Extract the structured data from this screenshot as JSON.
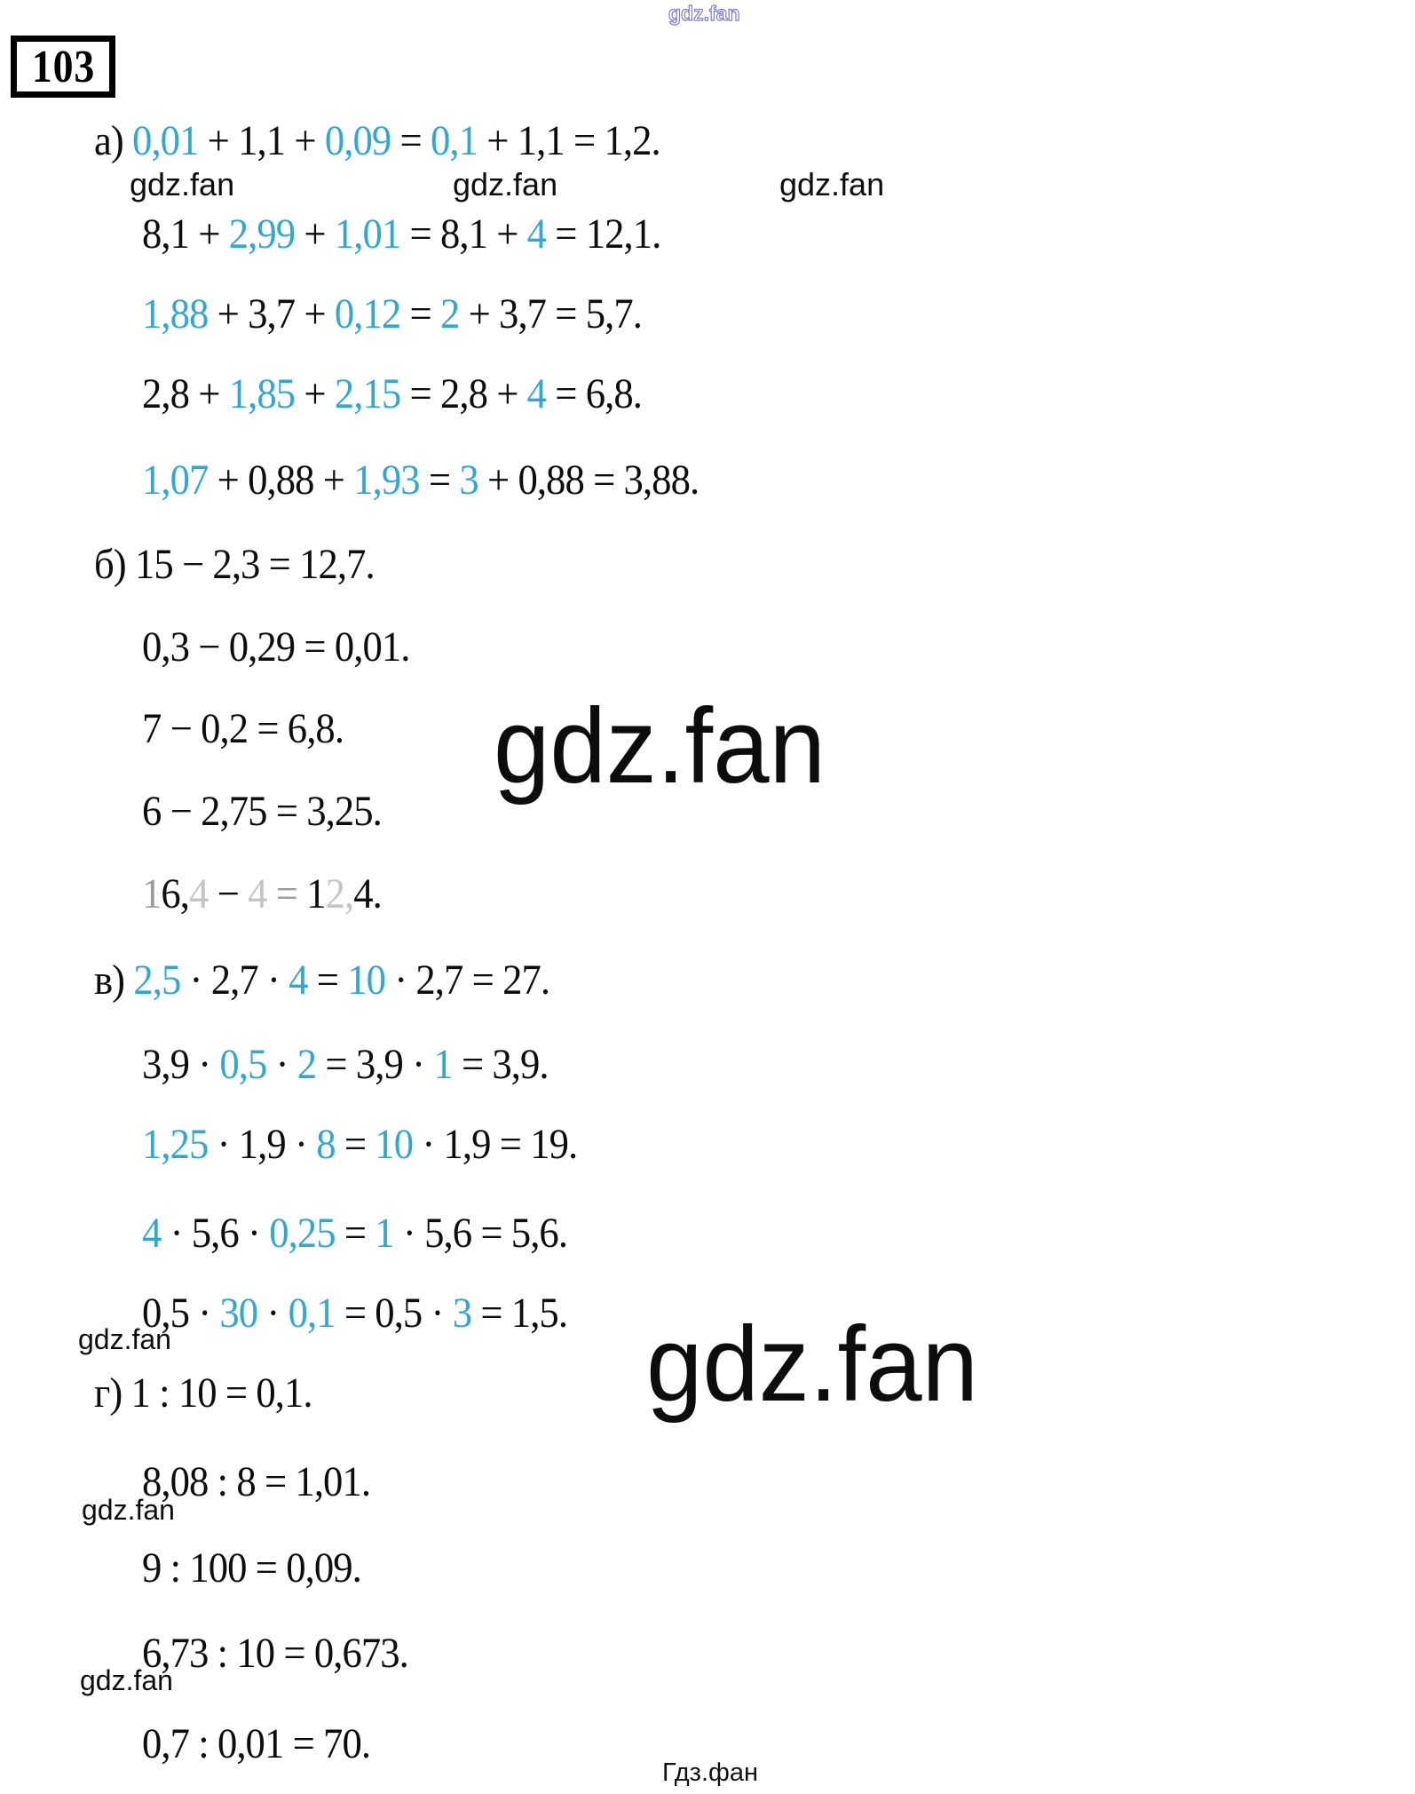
{
  "page": {
    "problem_number": "103",
    "footer": "Гдз.фан"
  },
  "colors": {
    "accent": "#2fa8d3",
    "text": "#0d0d0d",
    "faded": "#c4c4c4",
    "faded_mid": "#9a9a9a",
    "watermark_outline": "#7d7dca"
  },
  "watermarks": {
    "top": "gdz.fan",
    "inline_row": [
      "gdz.fan",
      "gdz.fan",
      "gdz.fan"
    ],
    "large": [
      "gdz.fan",
      "gdz.fan"
    ],
    "small_left": [
      "gdz.fan",
      "gdz.fan",
      "gdz.fan"
    ]
  },
  "sections": [
    {
      "label": "а)",
      "lines": [
        [
          [
            "0,01",
            "a"
          ],
          [
            " + ",
            "k"
          ],
          [
            "1,1",
            "k"
          ],
          [
            " + ",
            "k"
          ],
          [
            "0,09",
            "a"
          ],
          [
            " = ",
            "k"
          ],
          [
            "0,1",
            "a"
          ],
          [
            " + ",
            "k"
          ],
          [
            "1,1",
            "k"
          ],
          [
            " = ",
            "k"
          ],
          [
            "1,2.",
            "k"
          ]
        ],
        [
          [
            "8,1",
            "k"
          ],
          [
            " + ",
            "k"
          ],
          [
            "2,99",
            "a"
          ],
          [
            " + ",
            "k"
          ],
          [
            "1,01",
            "a"
          ],
          [
            " = ",
            "k"
          ],
          [
            "8,1",
            "k"
          ],
          [
            " + ",
            "k"
          ],
          [
            "4",
            "a"
          ],
          [
            " = ",
            "k"
          ],
          [
            "12,1.",
            "k"
          ]
        ],
        [
          [
            "1,88",
            "a"
          ],
          [
            " + ",
            "k"
          ],
          [
            "3,7",
            "k"
          ],
          [
            " + ",
            "k"
          ],
          [
            "0,12",
            "a"
          ],
          [
            " = ",
            "k"
          ],
          [
            "2",
            "a"
          ],
          [
            " + ",
            "k"
          ],
          [
            "3,7",
            "k"
          ],
          [
            " = ",
            "k"
          ],
          [
            "5,7.",
            "k"
          ]
        ],
        [
          [
            "2,8",
            "k"
          ],
          [
            " + ",
            "k"
          ],
          [
            "1,85",
            "a"
          ],
          [
            " + ",
            "k"
          ],
          [
            "2,15",
            "a"
          ],
          [
            " = ",
            "k"
          ],
          [
            "2,8",
            "k"
          ],
          [
            " + ",
            "k"
          ],
          [
            "4",
            "a"
          ],
          [
            " = ",
            "k"
          ],
          [
            "6,8.",
            "k"
          ]
        ],
        [
          [
            "1,07",
            "a"
          ],
          [
            " + ",
            "k"
          ],
          [
            "0,88",
            "k"
          ],
          [
            " + ",
            "k"
          ],
          [
            "1,93",
            "a"
          ],
          [
            " = ",
            "k"
          ],
          [
            "3",
            "a"
          ],
          [
            " + ",
            "k"
          ],
          [
            "0,88",
            "k"
          ],
          [
            " = ",
            "k"
          ],
          [
            "3,88.",
            "k"
          ]
        ]
      ]
    },
    {
      "label": "б)",
      "lines": [
        [
          [
            "15 − 2,3 = 12,7.",
            "k"
          ]
        ],
        [
          [
            "0,3 − 0,29 = 0,01.",
            "k"
          ]
        ],
        [
          [
            "7 − 0,2 = 6,8.",
            "k"
          ]
        ],
        [
          [
            "6 − 2,75 = 3,25.",
            "k"
          ]
        ],
        [
          [
            "1",
            "m"
          ],
          [
            "6,",
            "k"
          ],
          [
            "4",
            "g"
          ],
          [
            " − ",
            "k"
          ],
          [
            "4",
            "g"
          ],
          [
            " = ",
            "m"
          ],
          [
            "1",
            "k"
          ],
          [
            "2,",
            "g"
          ],
          [
            "4.",
            "k"
          ]
        ]
      ]
    },
    {
      "label": "в)",
      "lines": [
        [
          [
            "2,5",
            "a"
          ],
          [
            " · ",
            "k"
          ],
          [
            "2,7",
            "k"
          ],
          [
            " · ",
            "k"
          ],
          [
            "4",
            "a"
          ],
          [
            " = ",
            "k"
          ],
          [
            "10",
            "a"
          ],
          [
            " · ",
            "k"
          ],
          [
            "2,7",
            "k"
          ],
          [
            " = ",
            "k"
          ],
          [
            "27.",
            "k"
          ]
        ],
        [
          [
            "3,9",
            "k"
          ],
          [
            " · ",
            "k"
          ],
          [
            "0,5",
            "a"
          ],
          [
            " · ",
            "k"
          ],
          [
            "2",
            "a"
          ],
          [
            " = ",
            "k"
          ],
          [
            "3,9",
            "k"
          ],
          [
            " · ",
            "k"
          ],
          [
            "1",
            "a"
          ],
          [
            " = ",
            "k"
          ],
          [
            "3,9.",
            "k"
          ]
        ],
        [
          [
            "1,25",
            "a"
          ],
          [
            " · ",
            "k"
          ],
          [
            "1,9",
            "k"
          ],
          [
            " · ",
            "k"
          ],
          [
            "8",
            "a"
          ],
          [
            " = ",
            "k"
          ],
          [
            "10",
            "a"
          ],
          [
            " · ",
            "k"
          ],
          [
            "1,9",
            "k"
          ],
          [
            " = ",
            "k"
          ],
          [
            "19.",
            "k"
          ]
        ],
        [
          [
            "4",
            "a"
          ],
          [
            " · ",
            "k"
          ],
          [
            "5,6",
            "k"
          ],
          [
            " · ",
            "k"
          ],
          [
            "0,25",
            "a"
          ],
          [
            " = ",
            "k"
          ],
          [
            "1",
            "a"
          ],
          [
            " · ",
            "k"
          ],
          [
            "5,6",
            "k"
          ],
          [
            " = ",
            "k"
          ],
          [
            "5,6.",
            "k"
          ]
        ],
        [
          [
            "0,5",
            "k"
          ],
          [
            " · ",
            "k"
          ],
          [
            "30",
            "a"
          ],
          [
            " · ",
            "k"
          ],
          [
            "0,1",
            "a"
          ],
          [
            " = ",
            "k"
          ],
          [
            "0,5",
            "k"
          ],
          [
            " · ",
            "k"
          ],
          [
            "3",
            "a"
          ],
          [
            " = ",
            "k"
          ],
          [
            "1,5.",
            "k"
          ]
        ]
      ]
    },
    {
      "label": "г)",
      "lines": [
        [
          [
            "1 : 10 = 0,1.",
            "k"
          ]
        ],
        [
          [
            "8,08 : 8 = 1,01.",
            "k"
          ]
        ],
        [
          [
            "9 : 100 = 0,09.",
            "k"
          ]
        ],
        [
          [
            "6,73 : 10 = 0,673.",
            "k"
          ]
        ],
        [
          [
            "0,7 : 0,01 = 70.",
            "k"
          ]
        ]
      ]
    }
  ]
}
